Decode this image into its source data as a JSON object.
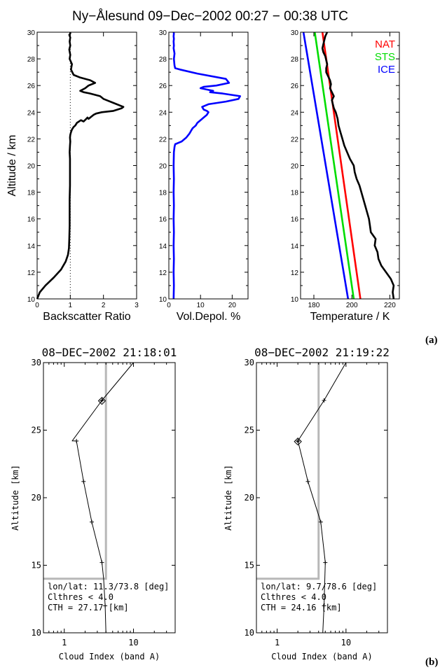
{
  "figure_a": {
    "title": "Ny−Ålesund   09−Dec−2002   00:27 − 00:38 UTC",
    "label": "(a)"
  },
  "figure_b": {
    "label": "(b)"
  },
  "chart_data": [
    {
      "id": "a1",
      "type": "line",
      "xlabel": "Backscatter Ratio",
      "ylabel": "Altitude / km",
      "xlim": [
        0,
        3
      ],
      "ylim": [
        10,
        30
      ],
      "xticks": [
        0,
        1,
        2,
        3
      ],
      "yticks": [
        10,
        12,
        14,
        16,
        18,
        20,
        22,
        24,
        26,
        28,
        30
      ],
      "reference_line": {
        "x": 1,
        "style": "dotted"
      },
      "series": [
        {
          "color": "#000000",
          "x": [
            0.0,
            0.08,
            0.25,
            0.5,
            0.72,
            0.86,
            0.93,
            0.96,
            0.97,
            0.98,
            0.98,
            0.98,
            0.99,
            0.99,
            0.99,
            0.98,
            0.99,
            1.0,
            0.99,
            1.0,
            1.02,
            1.05,
            1.1,
            1.15,
            1.2,
            1.32,
            1.4,
            1.48,
            1.52,
            1.55,
            1.7,
            1.78,
            1.95,
            2.3,
            2.55,
            2.6,
            2.3,
            2.1,
            2.0,
            1.9,
            1.6,
            1.4,
            1.3,
            1.45,
            1.55,
            1.75,
            1.6,
            1.3,
            1.1,
            1.02,
            1.05,
            0.98,
            1.0,
            0.97,
            1.0,
            0.98,
            1.0,
            0.97,
            1.0,
            1.0
          ],
          "y": [
            10.0,
            10.5,
            11.0,
            11.6,
            12.2,
            12.8,
            13.3,
            13.8,
            14.5,
            15.5,
            16.5,
            17.5,
            18.5,
            19.5,
            20.5,
            21.0,
            21.5,
            21.8,
            22.1,
            22.3,
            22.5,
            22.7,
            22.9,
            23.0,
            23.2,
            23.4,
            23.3,
            23.5,
            23.6,
            23.5,
            23.8,
            23.9,
            24.0,
            24.1,
            24.3,
            24.4,
            24.7,
            24.9,
            25.0,
            25.2,
            25.4,
            25.5,
            25.6,
            25.8,
            26.0,
            26.2,
            26.4,
            26.6,
            26.8,
            27.2,
            27.6,
            28.0,
            28.3,
            28.7,
            29.0,
            29.3,
            29.6,
            29.8,
            29.9,
            30.0
          ]
        }
      ]
    },
    {
      "id": "a2",
      "type": "line",
      "xlabel": "Vol.Depol. %",
      "ylabel": "",
      "xlim": [
        0,
        25
      ],
      "ylim": [
        10,
        30
      ],
      "xticks": [
        0,
        10,
        20
      ],
      "yticks": [
        10,
        12,
        14,
        16,
        18,
        20,
        22,
        24,
        26,
        28,
        30
      ],
      "series": [
        {
          "color": "#0000ff",
          "x": [
            1.5,
            1.6,
            1.5,
            1.6,
            1.5,
            1.6,
            1.5,
            1.6,
            1.5,
            1.6,
            1.5,
            1.6,
            1.8,
            2.0,
            4.0,
            5.5,
            6.5,
            7.0,
            7.5,
            8.5,
            9.0,
            10.0,
            11.0,
            12.0,
            12.5,
            12.0,
            11.0,
            10.5,
            12.5,
            18.0,
            22.0,
            22.5,
            17.0,
            13.0,
            14.0,
            12.0,
            10.0,
            11.0,
            15.0,
            19.0,
            18.0,
            9.0,
            3.5,
            2.0,
            1.8,
            1.6,
            1.8,
            1.5,
            1.6,
            1.5,
            1.6,
            1.5,
            1.6,
            1.5
          ],
          "y": [
            10.0,
            11.0,
            12.0,
            13.0,
            14.0,
            15.0,
            16.0,
            17.0,
            18.0,
            19.0,
            20.0,
            21.0,
            21.4,
            21.6,
            21.8,
            22.1,
            22.4,
            22.6,
            22.8,
            23.0,
            23.2,
            23.4,
            23.6,
            23.8,
            24.0,
            24.1,
            24.2,
            24.4,
            24.6,
            24.8,
            25.0,
            25.2,
            25.4,
            25.5,
            25.6,
            25.7,
            25.8,
            25.9,
            26.0,
            26.2,
            26.5,
            26.9,
            27.2,
            27.3,
            27.5,
            28.0,
            28.4,
            28.8,
            29.0,
            29.3,
            29.5,
            29.7,
            29.9,
            30.0
          ]
        }
      ]
    },
    {
      "id": "a3",
      "type": "line",
      "xlabel": "Temperature / K",
      "ylabel": "",
      "xlim": [
        173,
        225
      ],
      "ylim": [
        10,
        30
      ],
      "xticks": [
        180,
        200,
        220
      ],
      "yticks": [
        10,
        12,
        14,
        16,
        18,
        20,
        22,
        24,
        26,
        28,
        30
      ],
      "legend": {
        "position": "top-right",
        "entries": [
          {
            "label": "NAT",
            "color": "#ff0000"
          },
          {
            "label": "STS",
            "color": "#00dd00"
          },
          {
            "label": "ICE",
            "color": "#0000ff"
          }
        ]
      },
      "series": [
        {
          "name": "NAT",
          "color": "#ff0000",
          "x": [
            204.5,
            184.5
          ],
          "y": [
            10,
            30
          ]
        },
        {
          "name": "STS",
          "color": "#00dd00",
          "x": [
            201.0,
            180.5
          ],
          "y": [
            10,
            30
          ]
        },
        {
          "name": "ICE",
          "color": "#0000ff",
          "x": [
            198.0,
            174.5
          ],
          "y": [
            10,
            30
          ]
        },
        {
          "color": "#000000",
          "x": [
            222.0,
            221.5,
            222.0,
            220.5,
            218.0,
            215.5,
            214.0,
            213.5,
            212.0,
            212.5,
            210.0,
            209.5,
            209.0,
            208.0,
            207.0,
            206.0,
            205.0,
            204.0,
            202.5,
            201.5,
            201.0,
            199.0,
            197.5,
            196.0,
            195.0,
            194.0,
            193.0,
            192.5,
            191.5,
            190.5,
            190.0,
            189.5,
            190.5,
            189.5,
            188.5,
            189.0,
            188.5,
            187.5,
            186.5,
            186.5,
            187.0,
            186.5,
            186.0,
            185.0,
            184.5,
            185.0,
            185.5,
            186.0,
            187.0
          ],
          "y": [
            10.0,
            10.5,
            11.0,
            11.5,
            12.0,
            12.5,
            13.0,
            13.5,
            14.0,
            14.5,
            15.0,
            15.5,
            16.0,
            16.5,
            17.0,
            17.5,
            18.0,
            18.5,
            19.0,
            19.5,
            20.0,
            20.5,
            21.0,
            21.5,
            22.0,
            22.5,
            23.0,
            23.5,
            24.0,
            24.3,
            24.6,
            24.9,
            25.2,
            25.5,
            25.8,
            26.1,
            26.4,
            26.7,
            27.0,
            27.3,
            27.6,
            27.9,
            28.2,
            28.5,
            28.8,
            29.1,
            29.4,
            29.7,
            30.0
          ]
        }
      ]
    },
    {
      "id": "b1",
      "type": "line",
      "title": "08−DEC−2002 21:18:01",
      "xlabel": "Cloud Index (band A)",
      "ylabel": "Altitude [km]",
      "xscale": "log",
      "xlim": [
        0.5,
        40
      ],
      "ylim": [
        10,
        30
      ],
      "xticks": [
        1,
        10
      ],
      "yticks": [
        10,
        15,
        20,
        25,
        30
      ],
      "annotations": [
        "lon/lat: 11.3/73.8 [deg]",
        "Clthres < 4.0",
        "CTH = 27.17 [km]"
      ],
      "threshold": {
        "x": 4.0,
        "y_from": 14.0,
        "y_to": 30
      },
      "cloud_top_marker": {
        "x": 3.5,
        "y": 27.17
      },
      "series": [
        {
          "color": "#000000",
          "x": [
            4.0,
            3.9,
            3.7,
            3.5,
            2.5,
            1.9,
            1.5,
            1.3,
            3.5,
            10.0
          ],
          "y": [
            10.0,
            12.0,
            14.0,
            15.2,
            18.2,
            21.2,
            24.2,
            24.2,
            27.2,
            30.0
          ],
          "markers_y": [
            12.0,
            15.2,
            18.2,
            21.2,
            24.2,
            27.2
          ]
        }
      ]
    },
    {
      "id": "b2",
      "type": "line",
      "title": "08−DEC−2002 21:19:22",
      "xlabel": "Cloud Index (band A)",
      "ylabel": "Altitude [km]",
      "xscale": "log",
      "xlim": [
        0.5,
        40
      ],
      "ylim": [
        10,
        30
      ],
      "xticks": [
        1,
        10
      ],
      "yticks": [
        10,
        15,
        20,
        25,
        30
      ],
      "annotations": [
        "lon/lat: 9.7/78.6 [deg]",
        "Clthres < 4.0",
        "CTH = 24.16 [km]"
      ],
      "threshold": {
        "x": 4.0,
        "y_from": 14.0,
        "y_to": 30
      },
      "cloud_top_marker": {
        "x": 2.0,
        "y": 24.16
      },
      "series": [
        {
          "color": "#000000",
          "x": [
            4.6,
            4.8,
            5.0,
            5.0,
            4.3,
            2.8,
            2.0,
            4.8,
            10.0
          ],
          "y": [
            10.0,
            12.0,
            15.2,
            15.2,
            18.2,
            21.2,
            24.2,
            27.2,
            30.0
          ],
          "markers_y": [
            12.0,
            15.2,
            18.2,
            21.2,
            24.2,
            27.2
          ]
        }
      ]
    }
  ]
}
